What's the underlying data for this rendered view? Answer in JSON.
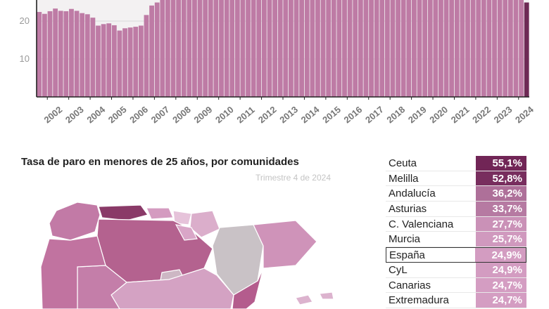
{
  "chart_data": [
    {
      "type": "bar",
      "title": "",
      "xlabel": "",
      "ylabel": "",
      "y_ticks": [
        "10",
        "20"
      ],
      "x_tick_labels": [
        "2002",
        "2003",
        "2004",
        "2005",
        "2006",
        "2007",
        "2008",
        "2009",
        "2010",
        "2011",
        "2012",
        "2013",
        "2014",
        "2015",
        "2016",
        "2017",
        "2018",
        "2019",
        "2020",
        "2021",
        "2022",
        "2023",
        "2024"
      ],
      "values": [
        22.4,
        21.9,
        22.6,
        23.3,
        22.7,
        22.6,
        23.2,
        22.7,
        22.1,
        21.8,
        20.9,
        18.8,
        19.2,
        19.4,
        18.9,
        17.5,
        18.1,
        18.3,
        18.5,
        18.8,
        21.6,
        24.1,
        24.9,
        26.2,
        26.9,
        28,
        29,
        30,
        30,
        30,
        30,
        30,
        30,
        30,
        30,
        30,
        30,
        30,
        30,
        30,
        30,
        30,
        30,
        30,
        30,
        30,
        30,
        30,
        30,
        30,
        30,
        30,
        30,
        30,
        30,
        30,
        30,
        30,
        30,
        30,
        30,
        30,
        30,
        30,
        30,
        30,
        30,
        30,
        30,
        30,
        30,
        30,
        30,
        30,
        30,
        30,
        30,
        30,
        30,
        30,
        30,
        30,
        30,
        30,
        30,
        30,
        30,
        30,
        30,
        30,
        30,
        24.9
      ],
      "colors": {
        "bar": "#be7ba5",
        "last_bar": "#6e2a55"
      }
    },
    {
      "type": "table",
      "title": "Tasa de paro en menores de 25 años, por comunidades",
      "subtitle": "Trimestre 4 de 2024",
      "rows": [
        {
          "name": "Ceuta",
          "value": "55,1%",
          "num": 55.1
        },
        {
          "name": "Melilla",
          "value": "52,8%",
          "num": 52.8
        },
        {
          "name": "Andalucía",
          "value": "36,2%",
          "num": 36.2
        },
        {
          "name": "Asturias",
          "value": "33,7%",
          "num": 33.7
        },
        {
          "name": "C. Valenciana",
          "value": "27,7%",
          "num": 27.7
        },
        {
          "name": "Murcia",
          "value": "25,7%",
          "num": 25.7
        },
        {
          "name": "España",
          "value": "24,9%",
          "num": 24.9,
          "highlight": true
        },
        {
          "name": "CyL",
          "value": "24,9%",
          "num": 24.9
        },
        {
          "name": "Canarias",
          "value": "24,7%",
          "num": 24.7
        },
        {
          "name": "Extremadura",
          "value": "24,7%",
          "num": 24.7
        }
      ]
    }
  ]
}
